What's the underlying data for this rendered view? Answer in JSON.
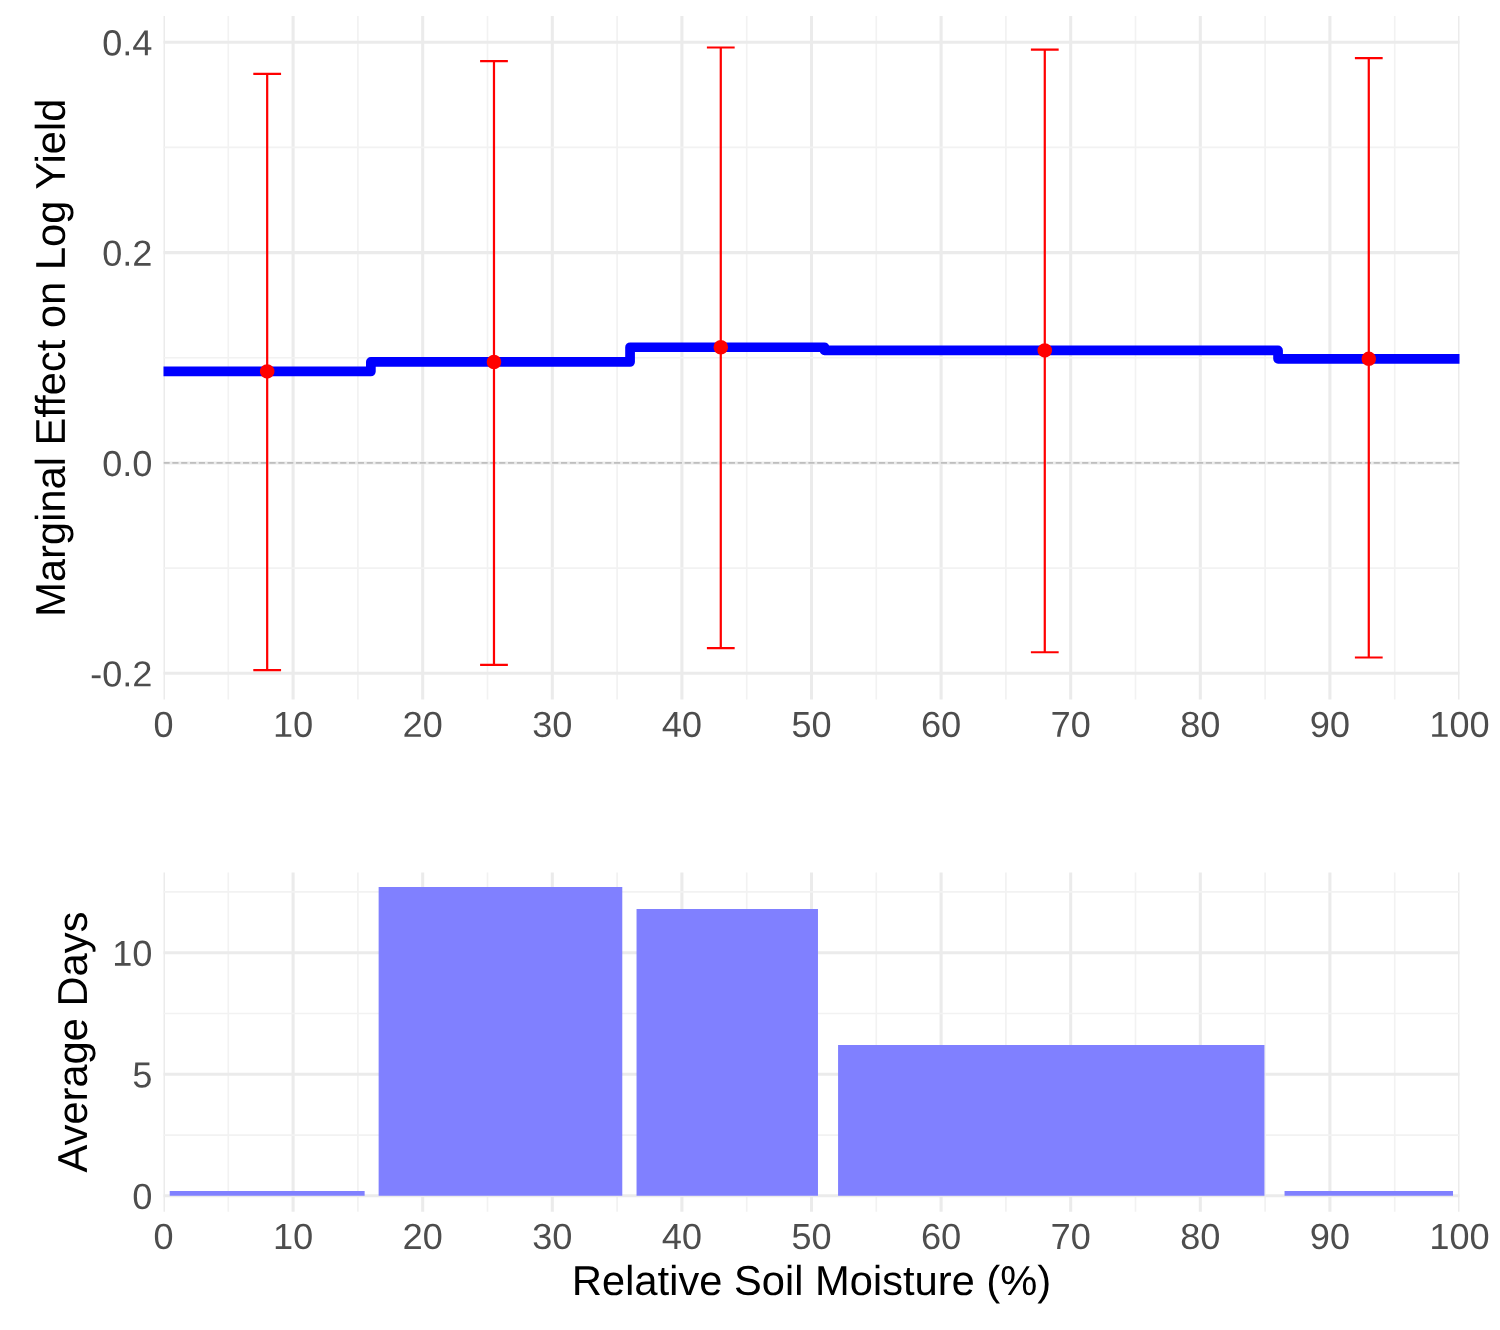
{
  "chart_data": [
    {
      "type": "line",
      "ylabel": "Marginal Effect on Log Yield",
      "xlim": [
        0,
        100
      ],
      "xticks": [
        0,
        10,
        20,
        30,
        40,
        50,
        60,
        70,
        80,
        90,
        100
      ],
      "ylim": [
        -0.225,
        0.425
      ],
      "yticks": [
        {
          "value": -0.2,
          "label": "-0.2"
        },
        {
          "value": 0,
          "label": "0.0"
        },
        {
          "value": 0.2,
          "label": "0.2"
        },
        {
          "value": 0.4,
          "label": "0.4"
        }
      ],
      "grid": true,
      "legend": false,
      "ref_lines": [
        {
          "axis": "y",
          "value": 0,
          "color": "#bebebe",
          "line_style": "dashed"
        }
      ],
      "series": [
        {
          "type": "step",
          "color": "#0000ff",
          "x": [
            0,
            16,
            36,
            51,
            86,
            100
          ],
          "values": [
            0.087,
            0.096,
            0.11,
            0.107,
            0.099,
            0.099
          ]
        },
        {
          "type": "scatter",
          "color": "#ff0000",
          "marker": "circle",
          "x": [
            8,
            25.5,
            43,
            68,
            93
          ],
          "values": [
            0.087,
            0.096,
            0.11,
            0.107,
            0.099
          ],
          "errors": [
            [
              -0.197,
              0.37
            ],
            [
              -0.192,
              0.382
            ],
            [
              -0.176,
              0.395
            ],
            [
              -0.18,
              0.393
            ],
            [
              -0.185,
              0.385
            ]
          ]
        }
      ]
    },
    {
      "type": "histogram",
      "xlabel": "Relative Soil Moisture (%)",
      "ylabel": "Average Days",
      "bins": [
        0,
        16,
        36,
        51,
        86,
        100
      ],
      "values": [
        0.2,
        12.7,
        11.8,
        6.2,
        0.2
      ],
      "color": "#8080ff",
      "xlim": [
        0,
        100
      ],
      "xticks": [
        0,
        10,
        20,
        30,
        40,
        50,
        60,
        70,
        80,
        90,
        100
      ],
      "ylim": [
        -0.65,
        13.3
      ],
      "yticks": [
        0,
        5,
        10
      ],
      "grid": true,
      "legend": false
    }
  ]
}
